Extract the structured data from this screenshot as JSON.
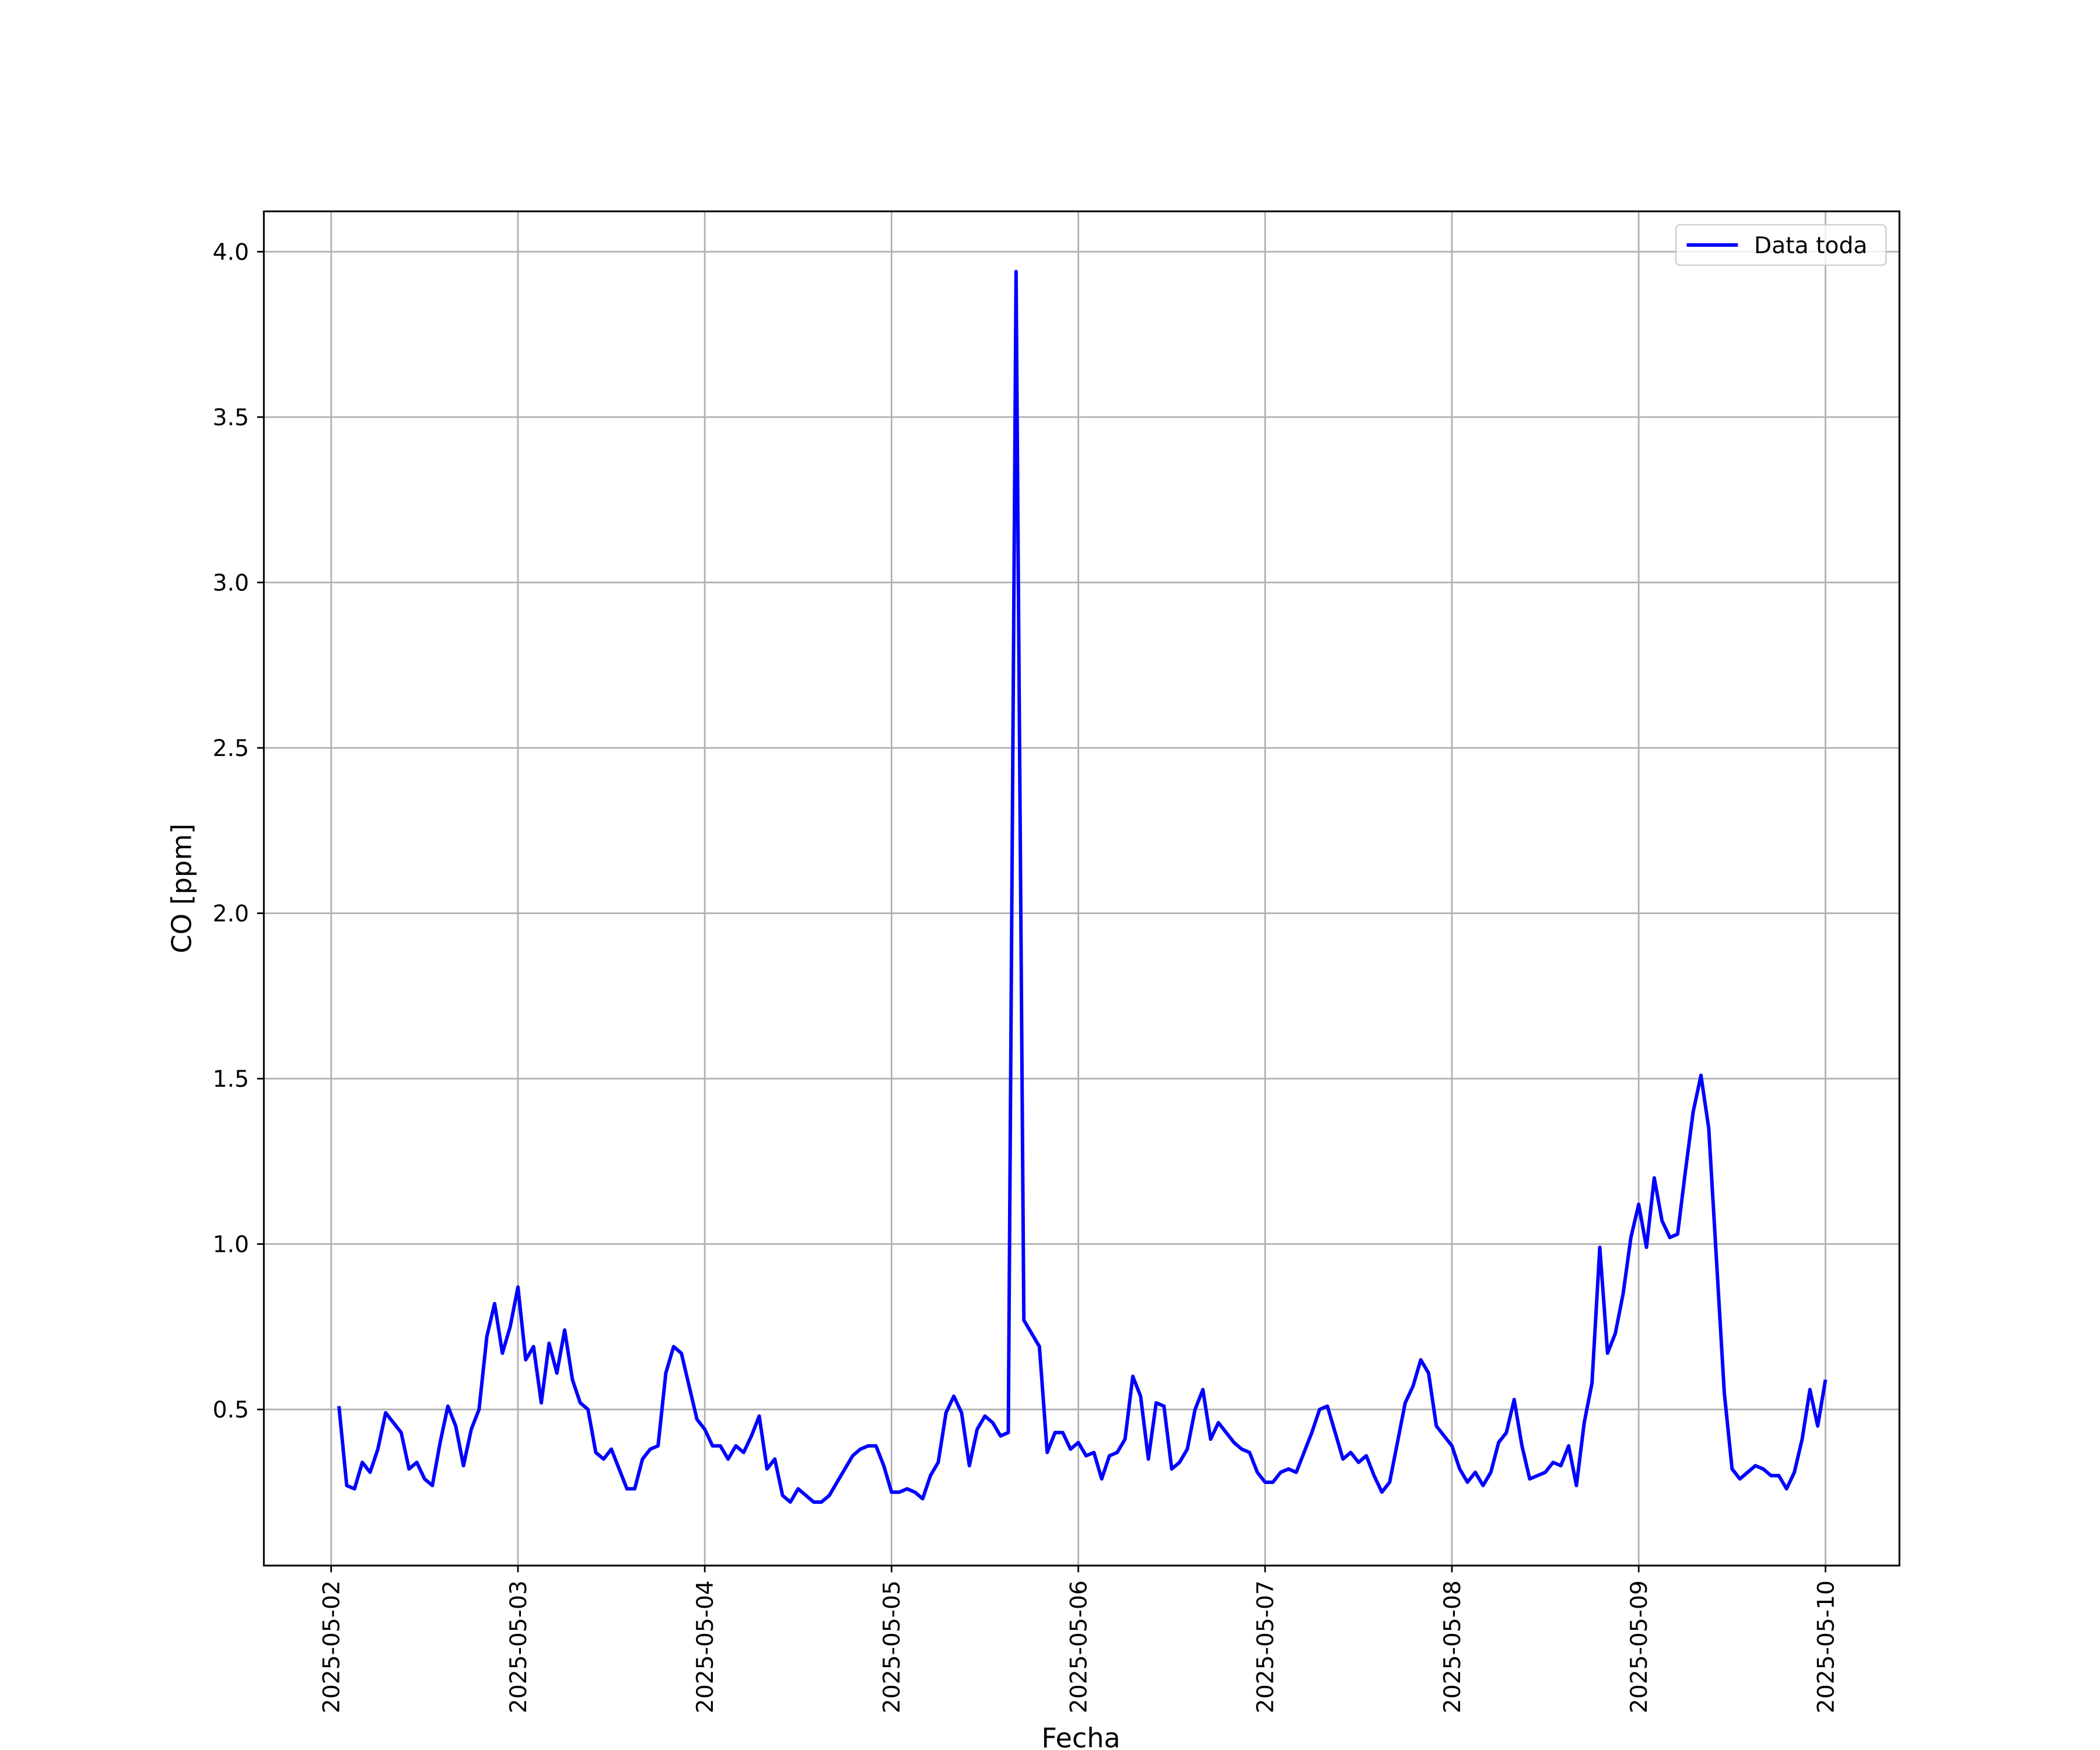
{
  "chart_data": {
    "type": "line",
    "xlabel": "Fecha",
    "ylabel": "CO [ppm]",
    "x": [
      "2025-05-02 01:00",
      "2025-05-02 02:00",
      "2025-05-02 03:00",
      "2025-05-02 04:00",
      "2025-05-02 05:00",
      "2025-05-02 06:00",
      "2025-05-02 07:00",
      "2025-05-02 08:00",
      "2025-05-02 09:00",
      "2025-05-02 10:00",
      "2025-05-02 11:00",
      "2025-05-02 12:00",
      "2025-05-02 13:00",
      "2025-05-02 14:00",
      "2025-05-02 15:00",
      "2025-05-02 16:00",
      "2025-05-02 17:00",
      "2025-05-02 18:00",
      "2025-05-02 19:00",
      "2025-05-02 20:00",
      "2025-05-02 21:00",
      "2025-05-02 22:00",
      "2025-05-02 23:00",
      "2025-05-03 00:00",
      "2025-05-03 01:00",
      "2025-05-03 02:00",
      "2025-05-03 03:00",
      "2025-05-03 04:00",
      "2025-05-03 05:00",
      "2025-05-03 06:00",
      "2025-05-03 07:00",
      "2025-05-03 08:00",
      "2025-05-03 09:00",
      "2025-05-03 10:00",
      "2025-05-03 11:00",
      "2025-05-03 12:00",
      "2025-05-03 13:00",
      "2025-05-03 14:00",
      "2025-05-03 15:00",
      "2025-05-03 16:00",
      "2025-05-03 17:00",
      "2025-05-03 18:00",
      "2025-05-03 19:00",
      "2025-05-03 20:00",
      "2025-05-03 21:00",
      "2025-05-03 22:00",
      "2025-05-03 23:00",
      "2025-05-04 00:00",
      "2025-05-04 01:00",
      "2025-05-04 02:00",
      "2025-05-04 03:00",
      "2025-05-04 04:00",
      "2025-05-04 05:00",
      "2025-05-04 06:00",
      "2025-05-04 07:00",
      "2025-05-04 08:00",
      "2025-05-04 09:00",
      "2025-05-04 10:00",
      "2025-05-04 11:00",
      "2025-05-04 12:00",
      "2025-05-04 13:00",
      "2025-05-04 14:00",
      "2025-05-04 15:00",
      "2025-05-04 16:00",
      "2025-05-04 17:00",
      "2025-05-04 18:00",
      "2025-05-04 19:00",
      "2025-05-04 20:00",
      "2025-05-04 21:00",
      "2025-05-04 22:00",
      "2025-05-04 23:00",
      "2025-05-05 00:00",
      "2025-05-05 01:00",
      "2025-05-05 02:00",
      "2025-05-05 03:00",
      "2025-05-05 04:00",
      "2025-05-05 05:00",
      "2025-05-05 06:00",
      "2025-05-05 07:00",
      "2025-05-05 08:00",
      "2025-05-05 09:00",
      "2025-05-05 10:00",
      "2025-05-05 11:00",
      "2025-05-05 12:00",
      "2025-05-05 13:00",
      "2025-05-05 14:00",
      "2025-05-05 15:00",
      "2025-05-05 16:00",
      "2025-05-05 17:00",
      "2025-05-05 18:00",
      "2025-05-05 19:00",
      "2025-05-05 20:00",
      "2025-05-05 21:00",
      "2025-05-05 22:00",
      "2025-05-05 23:00",
      "2025-05-06 00:00",
      "2025-05-06 01:00",
      "2025-05-06 02:00",
      "2025-05-06 03:00",
      "2025-05-06 04:00",
      "2025-05-06 05:00",
      "2025-05-06 06:00",
      "2025-05-06 07:00",
      "2025-05-06 08:00",
      "2025-05-06 09:00",
      "2025-05-06 10:00",
      "2025-05-06 11:00",
      "2025-05-06 12:00",
      "2025-05-06 13:00",
      "2025-05-06 14:00",
      "2025-05-06 15:00",
      "2025-05-06 16:00",
      "2025-05-06 17:00",
      "2025-05-06 18:00",
      "2025-05-06 19:00",
      "2025-05-06 20:00",
      "2025-05-06 21:00",
      "2025-05-06 22:00",
      "2025-05-06 23:00",
      "2025-05-07 00:00",
      "2025-05-07 01:00",
      "2025-05-07 02:00",
      "2025-05-07 03:00",
      "2025-05-07 04:00",
      "2025-05-07 05:00",
      "2025-05-07 06:00",
      "2025-05-07 07:00",
      "2025-05-07 08:00",
      "2025-05-07 09:00",
      "2025-05-07 10:00",
      "2025-05-07 11:00",
      "2025-05-07 12:00",
      "2025-05-07 13:00",
      "2025-05-07 14:00",
      "2025-05-07 15:00",
      "2025-05-07 16:00",
      "2025-05-07 17:00",
      "2025-05-07 18:00",
      "2025-05-07 19:00",
      "2025-05-07 20:00",
      "2025-05-07 21:00",
      "2025-05-07 22:00",
      "2025-05-07 23:00",
      "2025-05-08 00:00",
      "2025-05-08 01:00",
      "2025-05-08 02:00",
      "2025-05-08 03:00",
      "2025-05-08 04:00",
      "2025-05-08 05:00",
      "2025-05-08 06:00",
      "2025-05-08 07:00",
      "2025-05-08 08:00",
      "2025-05-08 09:00",
      "2025-05-08 10:00",
      "2025-05-08 11:00",
      "2025-05-08 12:00",
      "2025-05-08 13:00",
      "2025-05-08 14:00",
      "2025-05-08 15:00",
      "2025-05-08 16:00",
      "2025-05-08 17:00",
      "2025-05-08 18:00",
      "2025-05-08 19:00",
      "2025-05-08 20:00",
      "2025-05-08 21:00",
      "2025-05-08 22:00",
      "2025-05-08 23:00",
      "2025-05-09 00:00",
      "2025-05-09 01:00",
      "2025-05-09 02:00",
      "2025-05-09 03:00",
      "2025-05-09 04:00",
      "2025-05-09 05:00",
      "2025-05-09 06:00",
      "2025-05-09 07:00",
      "2025-05-09 08:00",
      "2025-05-09 09:00",
      "2025-05-09 10:00",
      "2025-05-09 11:00",
      "2025-05-09 12:00",
      "2025-05-09 13:00",
      "2025-05-09 14:00",
      "2025-05-09 15:00",
      "2025-05-09 16:00",
      "2025-05-09 17:00",
      "2025-05-09 18:00",
      "2025-05-09 19:00",
      "2025-05-09 20:00",
      "2025-05-09 21:00",
      "2025-05-09 22:00",
      "2025-05-09 23:00",
      "2025-05-10 00:00"
    ],
    "series": [
      {
        "name": "Data toda",
        "color": "#0000ff",
        "values": [
          0.51,
          0.27,
          0.26,
          0.34,
          0.31,
          0.38,
          0.49,
          0.46,
          0.43,
          0.32,
          0.34,
          0.29,
          0.27,
          0.4,
          0.51,
          0.45,
          0.33,
          0.44,
          0.5,
          0.72,
          0.82,
          0.67,
          0.75,
          0.87,
          0.65,
          0.69,
          0.52,
          0.7,
          0.61,
          0.74,
          0.59,
          0.52,
          0.5,
          0.37,
          0.35,
          0.38,
          0.32,
          0.26,
          0.26,
          0.35,
          0.38,
          0.39,
          0.61,
          0.69,
          0.67,
          0.57,
          0.47,
          0.44,
          0.39,
          0.39,
          0.35,
          0.39,
          0.37,
          0.42,
          0.48,
          0.32,
          0.35,
          0.24,
          0.22,
          0.26,
          0.24,
          0.22,
          0.22,
          0.24,
          0.28,
          0.32,
          0.36,
          0.38,
          0.39,
          0.39,
          0.33,
          0.25,
          0.25,
          0.26,
          0.25,
          0.23,
          0.3,
          0.34,
          0.49,
          0.54,
          0.49,
          0.33,
          0.44,
          0.48,
          0.46,
          0.42,
          0.43,
          3.94,
          0.77,
          0.73,
          0.69,
          0.37,
          0.43,
          0.43,
          0.38,
          0.4,
          0.36,
          0.37,
          0.29,
          0.36,
          0.37,
          0.41,
          0.6,
          0.54,
          0.35,
          0.52,
          0.51,
          0.32,
          0.34,
          0.38,
          0.5,
          0.56,
          0.41,
          0.46,
          0.43,
          0.4,
          0.38,
          0.37,
          0.31,
          0.28,
          0.28,
          0.31,
          0.32,
          0.31,
          0.37,
          0.43,
          0.5,
          0.51,
          0.43,
          0.35,
          0.37,
          0.34,
          0.36,
          0.3,
          0.25,
          0.28,
          0.4,
          0.52,
          0.57,
          0.65,
          0.61,
          0.45,
          0.42,
          0.39,
          0.32,
          0.28,
          0.31,
          0.27,
          0.31,
          0.4,
          0.43,
          0.53,
          0.39,
          0.29,
          0.3,
          0.31,
          0.34,
          0.33,
          0.39,
          0.27,
          0.46,
          0.58,
          0.99,
          0.67,
          0.73,
          0.85,
          1.02,
          1.12,
          0.99,
          1.2,
          1.07,
          1.02,
          1.03,
          1.22,
          1.4,
          1.51,
          1.35,
          0.95,
          0.55,
          0.32,
          0.29,
          0.31,
          0.33,
          0.32,
          0.3,
          0.3,
          0.26,
          0.31,
          0.41,
          0.56,
          0.45,
          0.59
        ]
      }
    ],
    "xlim": [
      "2025-05-01 15:21",
      "2025-05-10 09:30"
    ],
    "xticks": [
      "2025-05-02",
      "2025-05-03",
      "2025-05-04",
      "2025-05-05",
      "2025-05-06",
      "2025-05-07",
      "2025-05-08",
      "2025-05-09",
      "2025-05-10"
    ],
    "ylim": [
      0.028,
      4.122
    ],
    "yticks": [
      0.5,
      {
        "value": 1.0,
        "label": "1.0"
      },
      1.5,
      {
        "value": 2.0,
        "label": "2.0"
      },
      2.5,
      {
        "value": 3.0,
        "label": "3.0"
      },
      3.5,
      {
        "value": 4.0,
        "label": "4.0"
      }
    ],
    "grid": true,
    "legend": "upper right"
  }
}
